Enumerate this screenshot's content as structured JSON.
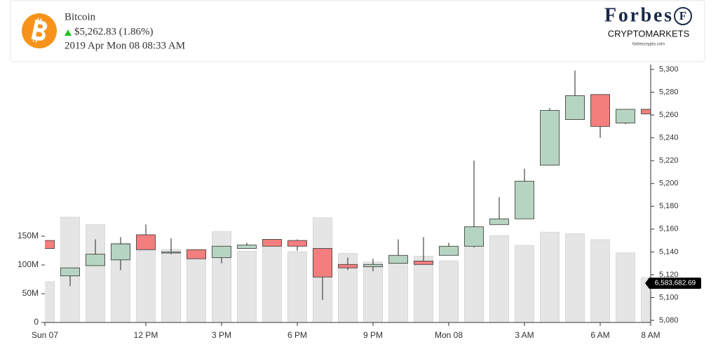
{
  "header": {
    "name": "Bitcoin",
    "price": "$5,262.83 (1.86%)",
    "datetime": "2019 Apr Mon 08 08:33 AM",
    "brand": "Forbes",
    "brand_mark": "F",
    "brand_sub": "CRYPTOMARKETS",
    "brand_url": "forbescrypto.com"
  },
  "chart_data": {
    "type": "candlestick",
    "categories": [
      "Sun 07",
      null,
      null,
      null,
      "12 PM",
      null,
      null,
      "3 PM",
      null,
      null,
      "6 PM",
      null,
      null,
      "9 PM",
      null,
      null,
      "Mon 08",
      null,
      null,
      "3 AM",
      null,
      null,
      "6 AM",
      null,
      "8 AM"
    ],
    "open": [
      5150,
      5119,
      5128,
      5133,
      5155,
      5139,
      5142,
      5135,
      5143,
      5151,
      5150,
      5143,
      5129,
      5127,
      5130,
      5132,
      5137,
      5145,
      5164,
      5169,
      5216,
      5256,
      5278,
      5253,
      5265
    ],
    "high": [
      5150,
      5126,
      5151,
      5153,
      5164,
      5152,
      5142,
      5145,
      5148,
      5151,
      5151,
      5143,
      5135,
      5134,
      5151,
      5153,
      5148,
      5220,
      5188,
      5213,
      5266,
      5299,
      5278,
      5265,
      5270
    ],
    "low": [
      5143,
      5110,
      5128,
      5124,
      5142,
      5138,
      5134,
      5130,
      5143,
      5145,
      5141,
      5098,
      5124,
      5123,
      5130,
      5129,
      5137,
      5144,
      5164,
      5169,
      5216,
      5256,
      5240,
      5252,
      5261
    ],
    "close": [
      5143,
      5126,
      5138,
      5147,
      5142,
      5140,
      5134,
      5145,
      5146,
      5145,
      5145,
      5118,
      5126,
      5129,
      5137,
      5129,
      5145,
      5162,
      5169,
      5202,
      5264,
      5277,
      5250,
      5265,
      5261
    ],
    "volume": [
      71000000,
      183000000,
      170000000,
      138000000,
      126000000,
      127000000,
      126000000,
      158000000,
      124000000,
      133000000,
      123000000,
      182000000,
      120000000,
      105000000,
      104000000,
      115000000,
      107000000,
      135000000,
      151000000,
      134000000,
      157000000,
      154000000,
      144000000,
      121000000,
      78000000
    ],
    "up_color": "#b6d4c2",
    "down_color": "#f47e7e",
    "volume_color": "#e5e5e5",
    "ylim": [
      5080,
      5300
    ],
    "yticks": [
      {
        "value": 5080,
        "label": "5,080"
      },
      {
        "value": 5100,
        "label": "5,100"
      },
      {
        "value": 5120,
        "label": "5,120"
      },
      {
        "value": 5140,
        "label": "5,140"
      },
      {
        "value": 5160,
        "label": "5,160"
      },
      {
        "value": 5180,
        "label": "5,180"
      },
      {
        "value": 5200,
        "label": "5,200"
      },
      {
        "value": 5220,
        "label": "5,220"
      },
      {
        "value": 5240,
        "label": "5,240"
      },
      {
        "value": 5260,
        "label": "5,260"
      },
      {
        "value": 5280,
        "label": "5,280"
      },
      {
        "value": 5300,
        "label": "5,300"
      }
    ],
    "y2lim": [
      0,
      445000000
    ],
    "y2ticks": [
      0,
      {
        "value": 50000000,
        "label": "50M"
      },
      {
        "value": 100000000,
        "label": "100M"
      },
      {
        "value": 150000000,
        "label": "150M"
      }
    ],
    "last_volume_label": "6,583,682.69"
  }
}
